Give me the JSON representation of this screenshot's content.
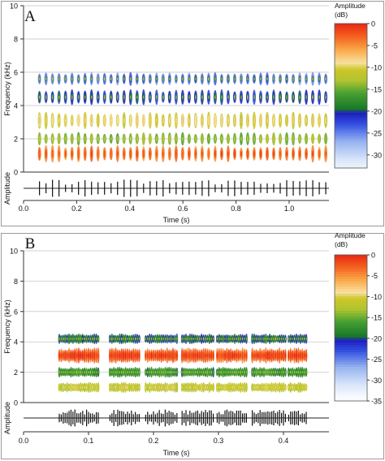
{
  "chart_data": [
    {
      "panel_label": "A",
      "type": "heatmap",
      "subtype": "spectrogram",
      "xlabel": "Time (s)",
      "ylabel": "Frequency (kHz)",
      "waveform_label": "Amplitude",
      "xlim": [
        0,
        1.15
      ],
      "ylim": [
        0,
        10
      ],
      "x_ticks": [
        "0.0",
        "0.2",
        "0.4",
        "0.6",
        "0.8",
        "1.0"
      ],
      "y_ticks": [
        "0",
        "2",
        "4",
        "6",
        "8",
        "10"
      ],
      "colorbar": {
        "title_line1": "Amplitude",
        "title_line2": "(dB)",
        "range": [
          -33,
          0
        ],
        "ticks": [
          "0",
          "-5",
          "-10",
          "-15",
          "-20",
          "-25",
          "-30"
        ]
      },
      "sound": {
        "start_s": 0.06,
        "end_s": 1.14,
        "pulse_interval_s": 0.0245,
        "bands_khz": [
          {
            "center": 1.1,
            "width": 0.45,
            "level_db": -5
          },
          {
            "center": 2.0,
            "width": 0.35,
            "level_db": -15
          },
          {
            "center": 3.1,
            "width": 0.45,
            "level_db": -11
          },
          {
            "center": 4.5,
            "width": 0.4,
            "level_db": -22
          },
          {
            "center": 5.6,
            "width": 0.35,
            "level_db": -25
          }
        ]
      },
      "grid": true
    },
    {
      "panel_label": "B",
      "type": "heatmap",
      "subtype": "spectrogram",
      "xlabel": "Time (s)",
      "ylabel": "Frequency (kHz)",
      "waveform_label": "Amplitude",
      "xlim": [
        0,
        0.47
      ],
      "ylim": [
        0,
        10
      ],
      "x_ticks": [
        "0.0",
        "0.1",
        "0.2",
        "0.3",
        "0.4"
      ],
      "y_ticks": [
        "0",
        "2",
        "4",
        "6",
        "8",
        "10"
      ],
      "colorbar": {
        "title_line1": "Amplitude",
        "title_line2": "(dB)",
        "range": [
          -35,
          0
        ],
        "ticks": [
          "0",
          "-5",
          "-10",
          "-15",
          "-20",
          "-25",
          "-30",
          "-35"
        ]
      },
      "sound": {
        "syllables_s": [
          [
            0.055,
            0.118
          ],
          [
            0.133,
            0.18
          ],
          [
            0.188,
            0.238
          ],
          [
            0.244,
            0.293
          ],
          [
            0.298,
            0.346
          ],
          [
            0.352,
            0.404
          ],
          [
            0.408,
            0.438
          ]
        ],
        "bands_khz": [
          {
            "center": 1.0,
            "width": 0.3,
            "level_db": -12
          },
          {
            "center": 2.0,
            "width": 0.3,
            "level_db": -18
          },
          {
            "center": 3.1,
            "width": 0.45,
            "level_db": -3
          },
          {
            "center": 4.2,
            "width": 0.3,
            "level_db": -20
          }
        ]
      },
      "grid": true
    }
  ]
}
